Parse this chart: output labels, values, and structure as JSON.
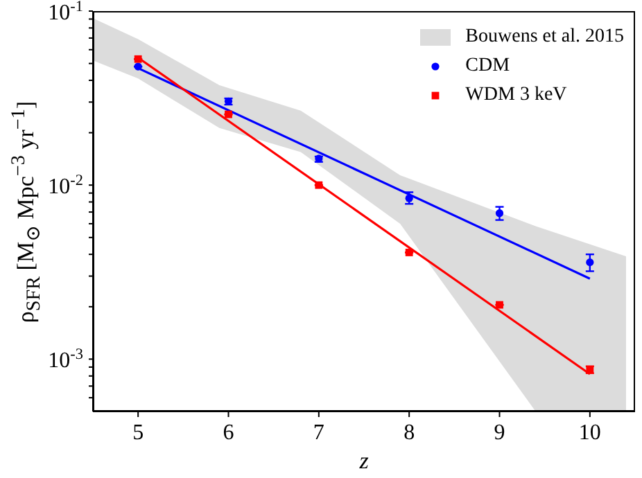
{
  "chart_data": {
    "type": "scatter",
    "xlabel": "z",
    "ylabel": "ρ$_{SFR}$ [M$_{⊙}$ Mpc$^{−3}$ yr$^{−1}$]",
    "log": "y",
    "legend": "top right",
    "xlim": [
      4.5,
      10.5
    ],
    "xticks": [
      5,
      6,
      7,
      8,
      9,
      10
    ],
    "ylim": [
      0.0005,
      0.1
    ],
    "yticks": [
      {
        "value": 0.001,
        "label": "10$^{-3}$"
      },
      {
        "value": 0.01,
        "label": "10$^{-2}$"
      },
      {
        "value": 0.1,
        "label": "10$^{-1}$"
      },
      {
        "value": 0.0006,
        "label": null
      },
      {
        "value": 0.0007,
        "label": null
      },
      {
        "value": 0.0008,
        "label": null
      },
      {
        "value": 0.0009,
        "label": null
      },
      {
        "value": 0.002,
        "label": null
      },
      {
        "value": 0.003,
        "label": null
      },
      {
        "value": 0.004,
        "label": null
      },
      {
        "value": 0.005,
        "label": null
      },
      {
        "value": 0.006,
        "label": null
      },
      {
        "value": 0.007,
        "label": null
      },
      {
        "value": 0.008,
        "label": null
      },
      {
        "value": 0.009,
        "label": null
      },
      {
        "value": 0.02,
        "label": null
      },
      {
        "value": 0.03,
        "label": null
      },
      {
        "value": 0.04,
        "label": null
      },
      {
        "value": 0.05,
        "label": null
      },
      {
        "value": 0.06,
        "label": null
      },
      {
        "value": 0.07,
        "label": null
      },
      {
        "value": 0.08,
        "label": null
      },
      {
        "value": 0.09,
        "label": null
      }
    ],
    "series": [
      {
        "name": "Bouwens et al. 2015",
        "type": "area",
        "color": "#dcdcdc",
        "x": [
          4.5,
          5,
          5.9,
          6.8,
          7.9,
          9.4,
          10.4
        ],
        "values": [
          null,
          null,
          null,
          null,
          null,
          null,
          null
        ],
        "lower": [
          0.052,
          0.041,
          0.0213,
          0.0155,
          0.006,
          0.0005,
          0.0005
        ],
        "upper": [
          0.091,
          0.069,
          0.0375,
          0.0268,
          0.0114,
          0.0058,
          0.0039
        ]
      },
      {
        "name": "CDM",
        "marker": "circle",
        "color": "#0000ff",
        "x": [
          5,
          6,
          7,
          8,
          9,
          10
        ],
        "values": [
          0.048,
          0.0303,
          0.0142,
          0.0084,
          0.0069,
          0.0036
        ],
        "errors": [
          null,
          [
            0.029,
            0.0315
          ],
          [
            0.0136,
            0.0146
          ],
          [
            0.0078,
            0.0091
          ],
          [
            0.0063,
            0.0075
          ],
          [
            0.0032,
            0.004
          ]
        ]
      },
      {
        "name": "WDM 3 keV",
        "marker": "square",
        "color": "#ff0000",
        "x": [
          5,
          6,
          7,
          8,
          9,
          10
        ],
        "values": [
          0.053,
          0.0255,
          0.01,
          0.0041,
          0.00205,
          0.00087
        ],
        "errors": [
          null,
          null,
          null,
          null,
          null,
          [
            0.00083,
            0.00091
          ]
        ]
      },
      {
        "type": "line",
        "color": "#0000ff",
        "x": [
          5,
          10
        ],
        "values": [
          0.047,
          0.0029
        ]
      },
      {
        "type": "line",
        "color": "#ff0000",
        "x": [
          5,
          10
        ],
        "values": [
          0.054,
          0.00082
        ]
      }
    ]
  }
}
